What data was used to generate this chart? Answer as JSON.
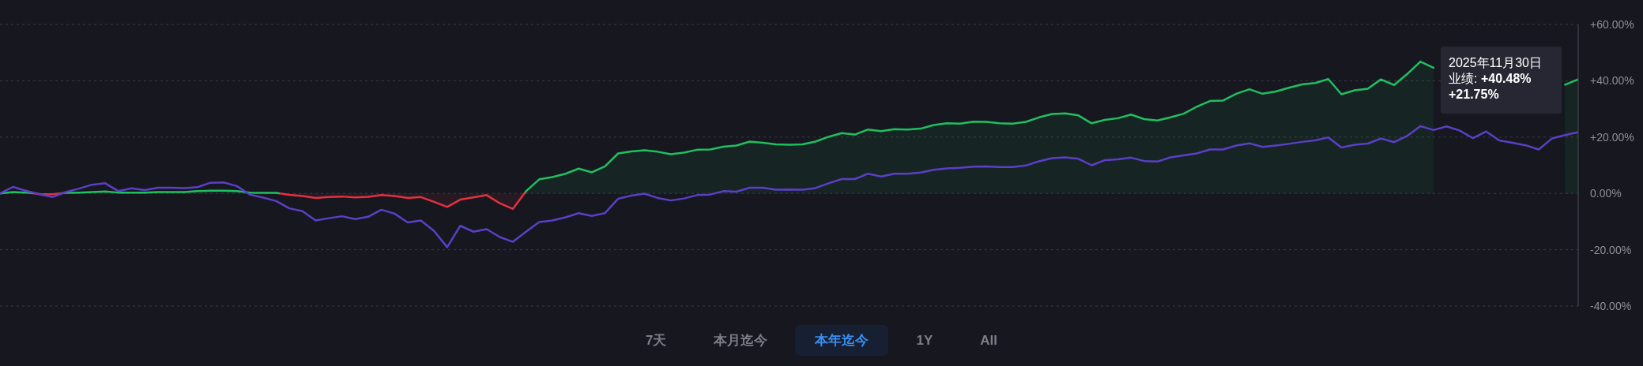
{
  "chart_data": {
    "type": "line",
    "categories": [
      null,
      null,
      null,
      null,
      null,
      null,
      null,
      null,
      null,
      null,
      null,
      null,
      null,
      null,
      null,
      null,
      null,
      null,
      null,
      null,
      null,
      null,
      null,
      null,
      null,
      null,
      null,
      null,
      null,
      null,
      null,
      null,
      null,
      null,
      null,
      null,
      null,
      null,
      null,
      null,
      null,
      null,
      null,
      null,
      null,
      null,
      null,
      null,
      null,
      null,
      null,
      null,
      null,
      null,
      null,
      null,
      null,
      null,
      null,
      null,
      null,
      null,
      null,
      null,
      null,
      null,
      null,
      null,
      null,
      null,
      null,
      null,
      null,
      null,
      null,
      null,
      null,
      null,
      null,
      null,
      null,
      null,
      null,
      null,
      null,
      null,
      null,
      null,
      null,
      null,
      null,
      null,
      null,
      null,
      null,
      null,
      null,
      null,
      null,
      null,
      null,
      null,
      null,
      null,
      null,
      null,
      null,
      null,
      null,
      null,
      null,
      null,
      null,
      null,
      null,
      null,
      null,
      null,
      null,
      null,
      null
    ],
    "series": [
      {
        "type": "area",
        "colors": [
          "#1fbf5f",
          "#1fbf5f",
          "#1fbf5f",
          "#e5303f",
          "#e5303f",
          "#1fbf5f",
          "#1fbf5f",
          "#1fbf5f",
          "#1fbf5f",
          "#1fbf5f",
          "#1fbf5f",
          "#1fbf5f",
          "#1fbf5f",
          "#1fbf5f",
          "#1fbf5f",
          "#1fbf5f",
          "#1fbf5f",
          "#1fbf5f",
          "#1fbf5f",
          "#1fbf5f",
          "#1fbf5f",
          "#1fbf5f",
          "#e5303f",
          "#e5303f",
          "#e5303f",
          "#e5303f",
          "#e5303f",
          "#e5303f",
          "#e5303f",
          "#e5303f",
          "#e5303f",
          "#e5303f",
          "#e5303f",
          "#e5303f",
          "#e5303f",
          "#e5303f",
          "#e5303f",
          "#e5303f",
          "#e5303f",
          "#e5303f",
          "#1fbf5f",
          "#1fbf5f",
          "#1fbf5f",
          "#1fbf5f",
          "#1fbf5f",
          "#1fbf5f",
          "#1fbf5f",
          "#1fbf5f",
          "#1fbf5f",
          "#1fbf5f",
          "#1fbf5f",
          "#1fbf5f",
          "#1fbf5f",
          "#1fbf5f",
          "#1fbf5f",
          "#1fbf5f",
          "#1fbf5f",
          "#1fbf5f",
          "#1fbf5f",
          "#1fbf5f",
          "#1fbf5f",
          "#1fbf5f",
          "#1fbf5f",
          "#1fbf5f",
          "#1fbf5f",
          "#1fbf5f",
          "#1fbf5f",
          "#1fbf5f",
          "#1fbf5f",
          "#1fbf5f",
          "#1fbf5f",
          "#1fbf5f",
          "#1fbf5f",
          "#1fbf5f",
          "#1fbf5f",
          "#1fbf5f",
          "#1fbf5f",
          "#1fbf5f",
          "#1fbf5f",
          "#1fbf5f",
          "#1fbf5f",
          "#1fbf5f",
          "#1fbf5f",
          "#1fbf5f",
          "#1fbf5f",
          "#1fbf5f",
          "#1fbf5f",
          "#1fbf5f",
          "#1fbf5f",
          "#1fbf5f",
          "#1fbf5f",
          "#1fbf5f",
          "#1fbf5f",
          "#1fbf5f",
          "#1fbf5f",
          "#1fbf5f",
          "#1fbf5f",
          "#1fbf5f",
          "#1fbf5f",
          "#1fbf5f",
          "#1fbf5f",
          "#1fbf5f",
          "#1fbf5f",
          "#1fbf5f",
          "#1fbf5f",
          "#1fbf5f",
          "#1fbf5f",
          "#1fbf5f",
          "#1fbf5f",
          "#1fbf5f",
          "#1fbf5f",
          "#1fbf5f",
          "#1fbf5f",
          "#1fbf5f",
          "#1fbf5f",
          "#1fbf5f",
          "#1fbf5f",
          "#1fbf5f",
          "#1fbf5f",
          "#1fbf5f",
          "#1fbf5f"
        ],
        "values": [
          0,
          0.5,
          0.3,
          -0.2,
          -0.3,
          0.2,
          0.3,
          0.5,
          0.7,
          0.3,
          0.3,
          0.3,
          0.5,
          0.5,
          0.5,
          0.8,
          1.0,
          1.0,
          0.8,
          0.3,
          0.2,
          0.2,
          -0.5,
          -0.9,
          -1.6,
          -1.3,
          -1.1,
          -1.4,
          -1.2,
          -0.6,
          -0.9,
          -1.6,
          -1.3,
          -3.0,
          -4.8,
          -2.2,
          -1.4,
          -0.6,
          -3.5,
          -5.5,
          0.8,
          5.0,
          5.8,
          7.0,
          8.8,
          7.5,
          9.6,
          14.2,
          14.9,
          15.3,
          14.8,
          13.9,
          14.5,
          15.5,
          15.6,
          16.6,
          17.0,
          18.4,
          18.0,
          17.4,
          17.3,
          17.4,
          18.4,
          20.1,
          21.4,
          20.9,
          22.7,
          22.1,
          22.8,
          22.7,
          23.0,
          24.3,
          24.9,
          24.8,
          25.5,
          25.4,
          24.9,
          24.8,
          25.4,
          27.0,
          28.2,
          28.4,
          27.7,
          24.9,
          26.1,
          26.7,
          28.0,
          26.4,
          25.9,
          27.0,
          28.3,
          30.8,
          32.8,
          33.0,
          35.4,
          37.0,
          35.4,
          36.2,
          37.5,
          38.7,
          39.2,
          40.6,
          35.2,
          36.6,
          37.2,
          40.5,
          38.5,
          42.4,
          46.8,
          44.6,
          null,
          null,
          null,
          null,
          null,
          null,
          null,
          null,
          null,
          38.6,
          40.48
        ]
      },
      {
        "color": "#5b3fc6",
        "values": [
          0,
          2.3,
          0.9,
          -0.3,
          -1.3,
          0.5,
          1.7,
          3.1,
          3.6,
          0.8,
          1.8,
          1.2,
          2.0,
          2.0,
          1.9,
          2.2,
          3.8,
          3.9,
          2.6,
          -0.4,
          -1.5,
          -2.7,
          -5.3,
          -6.3,
          -9.6,
          -8.8,
          -8.1,
          -9.1,
          -8.3,
          -5.8,
          -7.2,
          -10.3,
          -9.6,
          -13.3,
          -19.1,
          -11.5,
          -13.6,
          -12.7,
          -15.5,
          -17.2,
          -13.6,
          -10.2,
          -9.6,
          -8.5,
          -7.0,
          -8.0,
          -7.0,
          -1.9,
          -0.8,
          -0.1,
          -1.6,
          -2.5,
          -1.8,
          -0.6,
          -0.4,
          0.8,
          0.6,
          2.0,
          2.0,
          1.3,
          1.4,
          1.3,
          1.9,
          3.6,
          5.1,
          5.1,
          7.0,
          6.0,
          7.0,
          7.0,
          7.4,
          8.4,
          8.9,
          9.1,
          9.5,
          9.6,
          9.4,
          9.4,
          9.9,
          11.4,
          12.5,
          12.8,
          12.3,
          10.0,
          11.8,
          12.1,
          12.7,
          11.5,
          11.3,
          12.8,
          13.5,
          14.2,
          15.6,
          15.6,
          17.0,
          17.8,
          16.5,
          17.0,
          17.6,
          18.3,
          18.8,
          19.9,
          16.3,
          17.3,
          17.7,
          19.5,
          18.2,
          20.4,
          23.9,
          22.5,
          23.8,
          22.3,
          19.6,
          22.0,
          18.8,
          18.0,
          17.1,
          15.6,
          19.5,
          20.7,
          21.75
        ]
      }
    ],
    "ylim": [
      -40,
      60
    ],
    "yticks": [
      {
        "value": 60,
        "label": "+60.00%"
      },
      {
        "value": 40,
        "label": "+40.00%"
      },
      {
        "value": 20,
        "label": "+20.00%"
      },
      {
        "value": 0,
        "label": "0.00%"
      },
      {
        "value": -20,
        "label": "-20.00%"
      },
      {
        "value": -40,
        "label": "-40.00%"
      }
    ],
    "grid": "y",
    "tick_labels": "y",
    "marker": "none",
    "annotations": [
      "2025年11月30日",
      "业绩: +40.48%",
      "+21.75%",
      "7天",
      "本月迄今",
      "本年迄今",
      "1Y",
      "All"
    ]
  }
}
